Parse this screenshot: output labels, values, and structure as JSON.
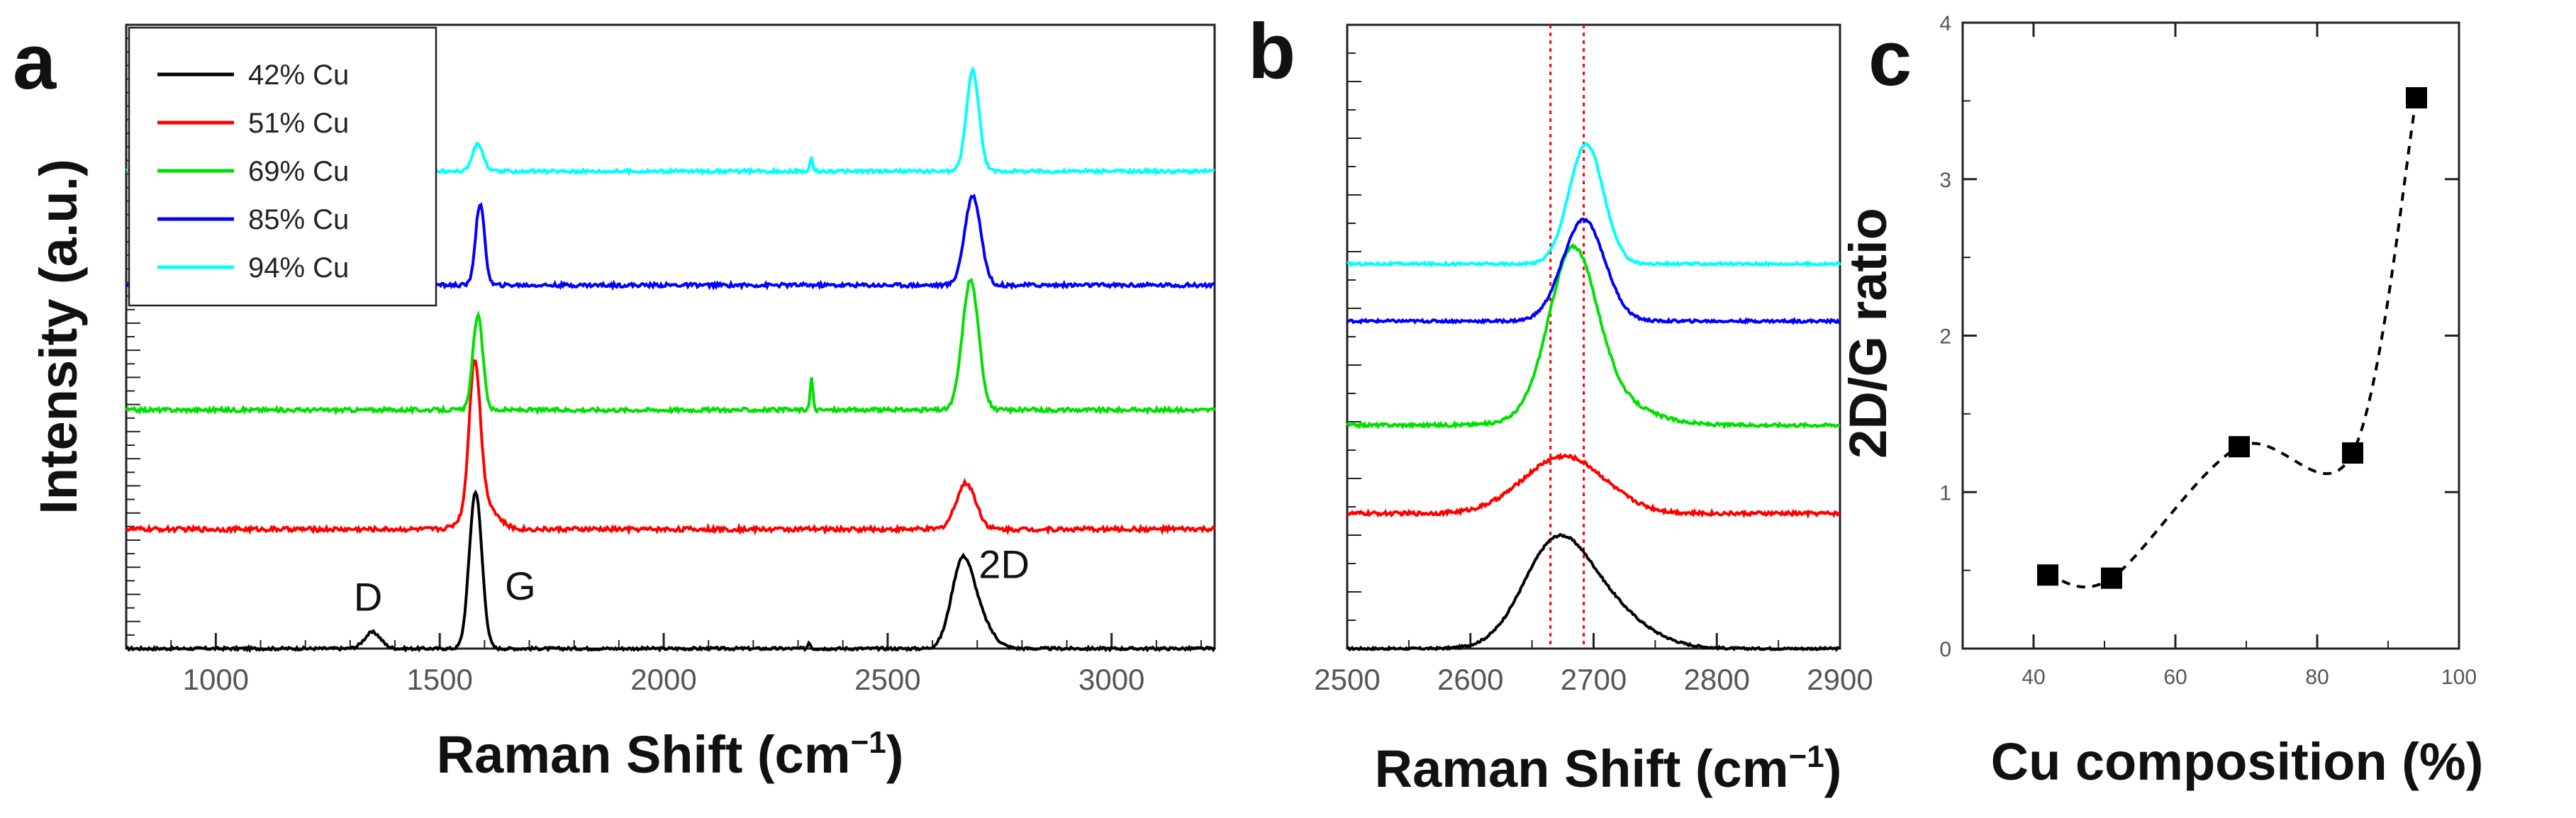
{
  "chart_data": [
    {
      "panel": "a",
      "type": "line",
      "xlabel": "Raman Shift (cm",
      "xlabel_sup": "−1",
      "xlabel_close": ")",
      "ylabel": "Intensity (a.u.)",
      "xlim": [
        800,
        3230
      ],
      "ylim": [
        0,
        11.5
      ],
      "xticks": [
        1000,
        1500,
        2000,
        2500,
        3000
      ],
      "xtick_labels": [
        "1000",
        "1500",
        "2000",
        "2500",
        "3000"
      ],
      "ytick_labels_shown": false,
      "legend": {
        "placement": "top-left",
        "entries": [
          {
            "label": "42% Cu",
            "color": "#000000"
          },
          {
            "label": "51% Cu",
            "color": "#ff0000"
          },
          {
            "label": "69% Cu",
            "color": "#00e000"
          },
          {
            "label": "85% Cu",
            "color": "#0000ff"
          },
          {
            "label": "94% Cu",
            "color": "#00ffff"
          }
        ]
      },
      "annotations": [
        {
          "text": "D",
          "x": 1340,
          "y": 0.7
        },
        {
          "text": "G",
          "x": 1680,
          "y": 0.9
        },
        {
          "text": "2D",
          "x": 2760,
          "y": 1.3
        }
      ],
      "series": [
        {
          "name": "42% Cu",
          "color": "#000000",
          "baseline": 0.0,
          "noise": 0.05,
          "peaks": [
            [
              1350,
              0.3,
              18
            ],
            [
              1580,
              2.9,
              14
            ],
            [
              2325,
              0.12,
              3
            ],
            [
              2665,
              1.4,
              24
            ],
            [
              2700,
              0.55,
              30
            ]
          ]
        },
        {
          "name": "51% Cu",
          "color": "#ff0000",
          "baseline": 2.2,
          "noise": 0.08,
          "peaks": [
            [
              1578,
              2.6,
              12
            ],
            [
              1590,
              0.6,
              30
            ],
            [
              2675,
              0.85,
              22
            ]
          ]
        },
        {
          "name": "69% Cu",
          "color": "#00e000",
          "baseline": 4.4,
          "noise": 0.07,
          "peaks": [
            [
              1585,
              1.75,
              11
            ],
            [
              2330,
              0.6,
              3
            ],
            [
              2685,
              2.4,
              18
            ]
          ]
        },
        {
          "name": "85% Cu",
          "color": "#0000ff",
          "baseline": 6.7,
          "noise": 0.07,
          "peaks": [
            [
              1590,
              1.5,
              10
            ],
            [
              2690,
              1.65,
              18
            ]
          ]
        },
        {
          "name": "94% Cu",
          "color": "#00ffff",
          "baseline": 8.8,
          "noise": 0.06,
          "peaks": [
            [
              1585,
              0.5,
              12
            ],
            [
              2330,
              0.25,
              3
            ],
            [
              2690,
              1.85,
              14
            ]
          ]
        }
      ]
    },
    {
      "panel": "b",
      "type": "line",
      "xlabel": "Raman Shift (cm",
      "xlabel_sup": "−1",
      "xlabel_close": ")",
      "xlim": [
        2500,
        2900
      ],
      "ylim": [
        0,
        12
      ],
      "xticks": [
        2500,
        2600,
        2700,
        2800,
        2900
      ],
      "xtick_labels": [
        "2500",
        "2600",
        "2700",
        "2800",
        "2900"
      ],
      "ytick_labels_shown": false,
      "reference_lines": [
        2665,
        2692
      ],
      "series": [
        {
          "name": "42% Cu",
          "color": "#000000",
          "baseline": 0.0,
          "noise": 0.04,
          "peaks": [
            [
              2667,
              1.55,
              26
            ],
            [
              2700,
              0.9,
              35
            ]
          ]
        },
        {
          "name": "51% Cu",
          "color": "#ff0000",
          "baseline": 2.6,
          "noise": 0.07,
          "peaks": [
            [
              2676,
              1.1,
              33
            ]
          ]
        },
        {
          "name": "69% Cu",
          "color": "#00e000",
          "baseline": 4.3,
          "noise": 0.06,
          "peaks": [
            [
              2683,
              2.9,
              19
            ],
            [
              2700,
              0.6,
              35
            ]
          ]
        },
        {
          "name": "85% Cu",
          "color": "#0000ff",
          "baseline": 6.3,
          "noise": 0.05,
          "peaks": [
            [
              2692,
              1.95,
              17
            ]
          ]
        },
        {
          "name": "94% Cu",
          "color": "#00ffff",
          "baseline": 7.4,
          "noise": 0.05,
          "peaks": [
            [
              2694,
              2.3,
              14
            ]
          ]
        }
      ]
    },
    {
      "panel": "c",
      "type": "scatter",
      "line_style": "dashed",
      "xlabel": "Cu composition (%)",
      "ylabel": "2D/G ratio",
      "xlim": [
        30,
        100
      ],
      "ylim": [
        0,
        4
      ],
      "xticks": [
        40,
        60,
        80,
        100
      ],
      "xtick_labels": [
        "40",
        "60",
        "80",
        "100"
      ],
      "yticks": [
        0,
        1,
        2,
        3,
        4
      ],
      "ytick_labels": [
        "0",
        "1",
        "2",
        "3",
        "4"
      ],
      "x": [
        42,
        51,
        69,
        85,
        94
      ],
      "y": [
        0.47,
        0.45,
        1.29,
        1.25,
        3.52
      ]
    }
  ],
  "panel_labels": {
    "a": "a",
    "b": "b",
    "c": "c"
  }
}
